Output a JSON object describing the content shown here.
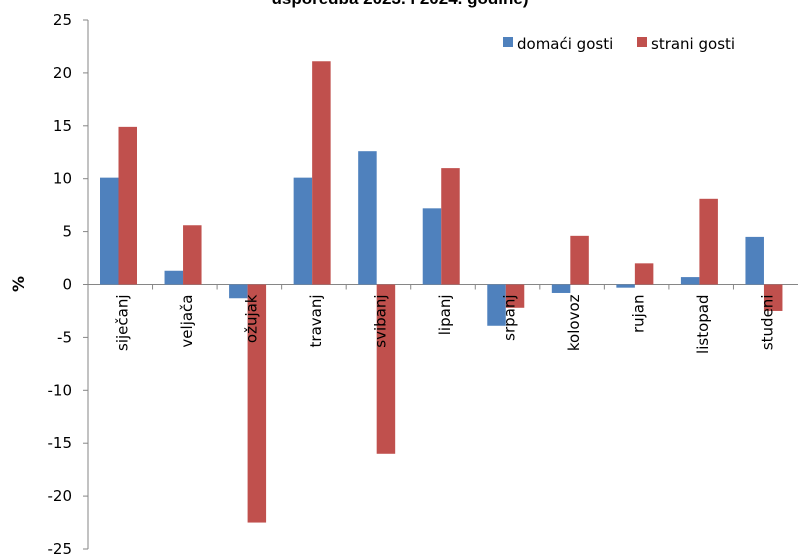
{
  "chart_data": {
    "type": "bar",
    "title": "usporedba 2023. i 2024. godine)",
    "ylabel": "%",
    "xlabel": "",
    "ylim": [
      -25,
      25
    ],
    "yticks": [
      25,
      20,
      15,
      10,
      5,
      0,
      -5,
      -10,
      -15,
      -20,
      -25
    ],
    "grid": false,
    "legend_position": "top-right",
    "categories": [
      "siječanj",
      "veljača",
      "ožujak",
      "travanj",
      "svibanj",
      "lipanj",
      "srpanj",
      "kolovoz",
      "rujan",
      "listopad",
      "studeni"
    ],
    "series": [
      {
        "name": "domaći gosti",
        "color": "#4f81bd",
        "values": [
          10.1,
          1.3,
          -1.3,
          10.1,
          12.6,
          7.2,
          -3.9,
          -0.8,
          -0.3,
          0.7,
          4.5
        ]
      },
      {
        "name": "strani gosti",
        "color": "#c0504d",
        "values": [
          14.9,
          5.6,
          -22.5,
          21.1,
          -16.0,
          11.0,
          -2.2,
          4.6,
          2.0,
          8.1,
          -2.5
        ]
      }
    ]
  }
}
